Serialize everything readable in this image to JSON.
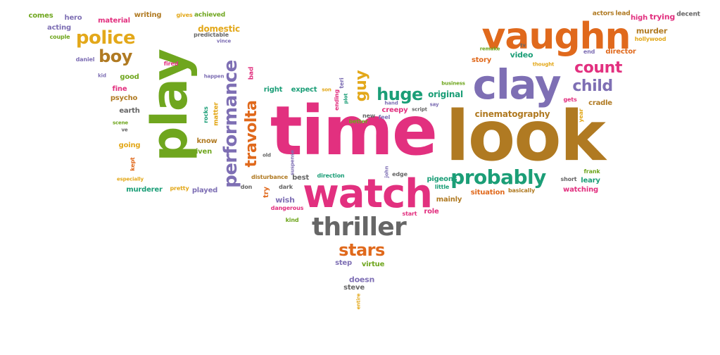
{
  "colors": {
    "orange": "#E0691C",
    "green": "#6FA61E",
    "purple": "#7E6FB4",
    "pink": "#E2307F",
    "brown": "#B07A22",
    "teal": "#1B9E77",
    "gray": "#666666",
    "gold": "#E3A81A"
  },
  "words": [
    {
      "text": "time",
      "color": "pink"
    },
    {
      "text": "look",
      "color": "brown"
    },
    {
      "text": "play",
      "color": "green"
    },
    {
      "text": "watch",
      "color": "pink"
    },
    {
      "text": "vaughn",
      "color": "orange"
    },
    {
      "text": "clay",
      "color": "purple"
    },
    {
      "text": "thriller",
      "color": "gray"
    },
    {
      "text": "probably",
      "color": "teal"
    },
    {
      "text": "stars",
      "color": "orange"
    },
    {
      "text": "performance",
      "color": "purple"
    },
    {
      "text": "travolta",
      "color": "orange"
    },
    {
      "text": "police",
      "color": "gold"
    },
    {
      "text": "boy",
      "color": "brown"
    },
    {
      "text": "count",
      "color": "pink"
    },
    {
      "text": "child",
      "color": "purple"
    },
    {
      "text": "huge",
      "color": "teal"
    },
    {
      "text": "guy",
      "color": "gold"
    },
    {
      "text": "cinematography",
      "color": "brown"
    },
    {
      "text": "domestic",
      "color": "gold"
    },
    {
      "text": "original",
      "color": "teal"
    },
    {
      "text": "video",
      "color": "teal"
    },
    {
      "text": "story",
      "color": "orange"
    },
    {
      "text": "director",
      "color": "orange"
    },
    {
      "text": "murder",
      "color": "brown"
    },
    {
      "text": "trying",
      "color": "pink"
    },
    {
      "text": "high",
      "color": "pink"
    },
    {
      "text": "material",
      "color": "pink"
    },
    {
      "text": "comes",
      "color": "green"
    },
    {
      "text": "hero",
      "color": "purple"
    },
    {
      "text": "writing",
      "color": "brown"
    },
    {
      "text": "gives",
      "color": "gold"
    },
    {
      "text": "achieved",
      "color": "green"
    },
    {
      "text": "acting",
      "color": "purple"
    },
    {
      "text": "couple",
      "color": "green"
    },
    {
      "text": "predictable",
      "color": "gray"
    },
    {
      "text": "vince",
      "color": "purple"
    },
    {
      "text": "daniel",
      "color": "purple"
    },
    {
      "text": "kid",
      "color": "purple"
    },
    {
      "text": "good",
      "color": "green"
    },
    {
      "text": "fired",
      "color": "pink"
    },
    {
      "text": "happen",
      "color": "purple"
    },
    {
      "text": "bad",
      "color": "pink"
    },
    {
      "text": "fine",
      "color": "pink"
    },
    {
      "text": "psycho",
      "color": "brown"
    },
    {
      "text": "earth",
      "color": "gray"
    },
    {
      "text": "scene",
      "color": "green"
    },
    {
      "text": "ve",
      "color": "gray"
    },
    {
      "text": "trailer",
      "color": "green"
    },
    {
      "text": "rocks",
      "color": "teal"
    },
    {
      "text": "matter",
      "color": "gold"
    },
    {
      "text": "know",
      "color": "brown"
    },
    {
      "text": "going",
      "color": "gold"
    },
    {
      "text": "given",
      "color": "green"
    },
    {
      "text": "kept",
      "color": "orange"
    },
    {
      "text": "especially",
      "color": "gold"
    },
    {
      "text": "murderer",
      "color": "teal"
    },
    {
      "text": "pretty",
      "color": "gold"
    },
    {
      "text": "played",
      "color": "purple"
    },
    {
      "text": "don",
      "color": "gray"
    },
    {
      "text": "right",
      "color": "teal"
    },
    {
      "text": "expect",
      "color": "teal"
    },
    {
      "text": "son",
      "color": "gold"
    },
    {
      "text": "ending",
      "color": "pink"
    },
    {
      "text": "teri",
      "color": "purple"
    },
    {
      "text": "plot",
      "color": "teal"
    },
    {
      "text": "new",
      "color": "gray"
    },
    {
      "text": "feel",
      "color": "purple"
    },
    {
      "text": "creepy",
      "color": "pink"
    },
    {
      "text": "hand",
      "color": "purple"
    },
    {
      "text": "script",
      "color": "gray"
    },
    {
      "text": "say",
      "color": "purple"
    },
    {
      "text": "better",
      "color": "green"
    },
    {
      "text": "business",
      "color": "green"
    },
    {
      "text": "old",
      "color": "gray"
    },
    {
      "text": "suspense",
      "color": "purple"
    },
    {
      "text": "disturbance",
      "color": "brown"
    },
    {
      "text": "best",
      "color": "gray"
    },
    {
      "text": "direction",
      "color": "teal"
    },
    {
      "text": "john",
      "color": "purple"
    },
    {
      "text": "edge",
      "color": "gray"
    },
    {
      "text": "pigeons",
      "color": "teal"
    },
    {
      "text": "little",
      "color": "teal"
    },
    {
      "text": "try",
      "color": "orange"
    },
    {
      "text": "dark",
      "color": "gray"
    },
    {
      "text": "wish",
      "color": "purple"
    },
    {
      "text": "dangerous",
      "color": "pink"
    },
    {
      "text": "mainly",
      "color": "brown"
    },
    {
      "text": "start",
      "color": "pink"
    },
    {
      "text": "role",
      "color": "pink"
    },
    {
      "text": "kind",
      "color": "green"
    },
    {
      "text": "step",
      "color": "purple"
    },
    {
      "text": "virtue",
      "color": "green"
    },
    {
      "text": "doesn",
      "color": "purple"
    },
    {
      "text": "steve",
      "color": "gray"
    },
    {
      "text": "entire",
      "color": "gold"
    },
    {
      "text": "remake",
      "color": "green"
    },
    {
      "text": "tv",
      "color": "gray"
    },
    {
      "text": "thought",
      "color": "gold"
    },
    {
      "text": "end",
      "color": "purple"
    },
    {
      "text": "hollywood",
      "color": "gold"
    },
    {
      "text": "actors",
      "color": "brown"
    },
    {
      "text": "lead",
      "color": "brown"
    },
    {
      "text": "decent",
      "color": "gray"
    },
    {
      "text": "gets",
      "color": "pink"
    },
    {
      "text": "cradle",
      "color": "brown"
    },
    {
      "text": "year",
      "color": "gold"
    },
    {
      "text": "frank",
      "color": "green"
    },
    {
      "text": "short",
      "color": "gray"
    },
    {
      "text": "leary",
      "color": "teal"
    },
    {
      "text": "watching",
      "color": "pink"
    },
    {
      "text": "situation",
      "color": "orange"
    },
    {
      "text": "basically",
      "color": "brown"
    }
  ]
}
